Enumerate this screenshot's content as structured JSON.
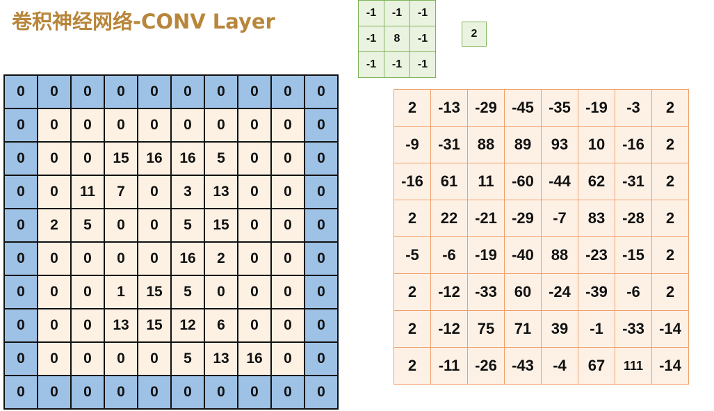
{
  "title": "卷积神经网络-CONV Layer",
  "kernel": [
    [
      "-1",
      "-1",
      "-1"
    ],
    [
      "-1",
      "8",
      "-1"
    ],
    [
      "-1",
      "-1",
      "-1"
    ]
  ],
  "bias": "2",
  "input_grid": [
    [
      "0",
      "0",
      "0",
      "0",
      "0",
      "0",
      "0",
      "0",
      "0",
      "0"
    ],
    [
      "0",
      "0",
      "0",
      "0",
      "0",
      "0",
      "0",
      "0",
      "0",
      "0"
    ],
    [
      "0",
      "0",
      "0",
      "15",
      "16",
      "16",
      "5",
      "0",
      "0",
      "0"
    ],
    [
      "0",
      "0",
      "11",
      "7",
      "0",
      "3",
      "13",
      "0",
      "0",
      "0"
    ],
    [
      "0",
      "2",
      "5",
      "0",
      "0",
      "5",
      "15",
      "0",
      "0",
      "0"
    ],
    [
      "0",
      "0",
      "0",
      "0",
      "0",
      "16",
      "2",
      "0",
      "0",
      "0"
    ],
    [
      "0",
      "0",
      "0",
      "1",
      "15",
      "5",
      "0",
      "0",
      "0",
      "0"
    ],
    [
      "0",
      "0",
      "0",
      "13",
      "15",
      "12",
      "6",
      "0",
      "0",
      "0"
    ],
    [
      "0",
      "0",
      "0",
      "0",
      "0",
      "5",
      "13",
      "16",
      "0",
      "0"
    ],
    [
      "0",
      "0",
      "0",
      "0",
      "0",
      "0",
      "0",
      "0",
      "0",
      "0"
    ]
  ],
  "output_grid": [
    [
      "2",
      "-13",
      "-29",
      "-45",
      "-35",
      "-19",
      "-3",
      "2"
    ],
    [
      "-9",
      "-31",
      "88",
      "89",
      "93",
      "10",
      "-16",
      "2"
    ],
    [
      "-16",
      "61",
      "11",
      "-60",
      "-44",
      "62",
      "-31",
      "2"
    ],
    [
      "2",
      "22",
      "-21",
      "-29",
      "-7",
      "83",
      "-28",
      "2"
    ],
    [
      "-5",
      "-6",
      "-19",
      "-40",
      "88",
      "-23",
      "-15",
      "2"
    ],
    [
      "2",
      "-12",
      "-33",
      "60",
      "-24",
      "-39",
      "-6",
      "2"
    ],
    [
      "2",
      "-12",
      "75",
      "71",
      "39",
      "-1",
      "-33",
      "-14"
    ],
    [
      "2",
      "-11",
      "-26",
      "-43",
      "-4",
      "67",
      "111",
      "-14"
    ]
  ],
  "colors": {
    "title": "#b8863a",
    "padding_cell": "#9ec2e6",
    "input_cell": "#fdf1e3",
    "kernel_fill": "#eaf3df",
    "kernel_border": "#7fb45c",
    "output_fill": "#fdf1e6",
    "output_border": "#f0a06a"
  }
}
